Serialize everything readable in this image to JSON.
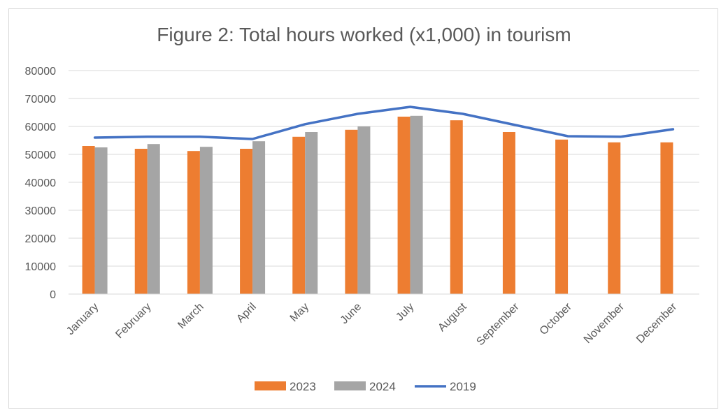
{
  "chart_data": {
    "type": "bar",
    "title": "Figure 2: Total hours worked (x1,000) in tourism",
    "xlabel": "",
    "ylabel": "",
    "ylim": [
      0,
      80000
    ],
    "yticks": [
      "0",
      "10000",
      "20000",
      "30000",
      "40000",
      "50000",
      "60000",
      "70000",
      "80000"
    ],
    "categories": [
      "January",
      "February",
      "March",
      "April",
      "May",
      "June",
      "July",
      "August",
      "September",
      "October",
      "November",
      "December"
    ],
    "series": [
      {
        "name": "2023",
        "type": "bar",
        "color": "#ed7d31",
        "values": [
          53000,
          52000,
          51200,
          52000,
          56300,
          58800,
          63500,
          62200,
          58000,
          55300,
          54300,
          54300
        ]
      },
      {
        "name": "2024",
        "type": "bar",
        "color": "#a5a5a5",
        "values": [
          52500,
          53700,
          52700,
          54700,
          58000,
          60000,
          63800,
          null,
          null,
          null,
          null,
          null
        ]
      },
      {
        "name": "2019",
        "type": "line",
        "color": "#4472c4",
        "values": [
          56000,
          56300,
          56300,
          55500,
          60800,
          64500,
          67000,
          64500,
          60500,
          56500,
          56300,
          59000
        ]
      }
    ],
    "grid": true,
    "legend_position": "bottom"
  }
}
